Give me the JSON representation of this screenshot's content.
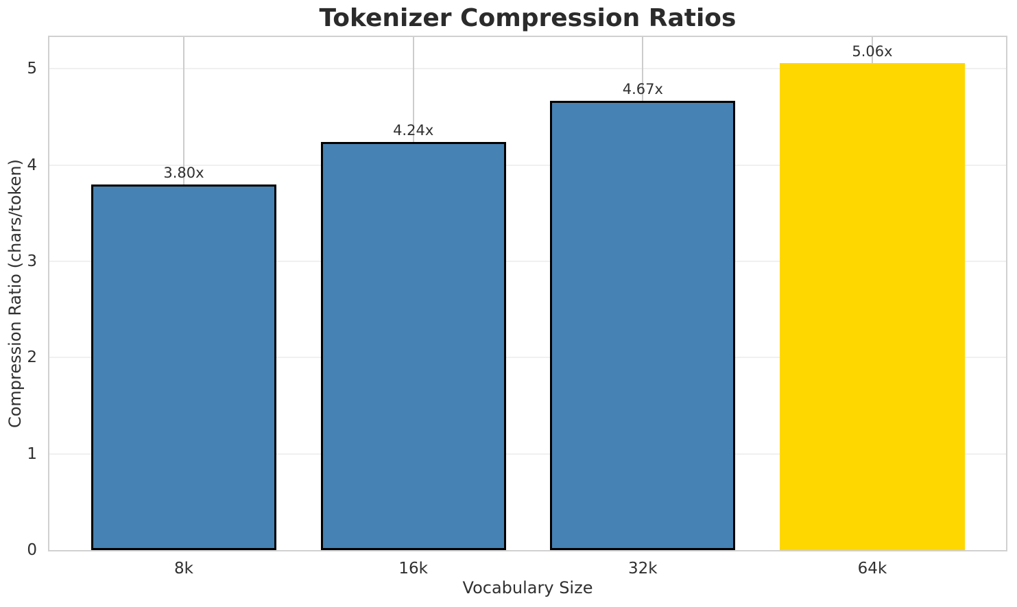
{
  "chart_data": {
    "type": "bar",
    "title": "Tokenizer Compression Ratios",
    "xlabel": "Vocabulary Size",
    "ylabel": "Compression Ratio (chars/token)",
    "categories": [
      "8k",
      "16k",
      "32k",
      "64k"
    ],
    "values": [
      3.8,
      4.24,
      4.67,
      5.06
    ],
    "bar_labels": [
      "3.80x",
      "4.24x",
      "4.67x",
      "5.06x"
    ],
    "bar_colors": [
      "#4682B4",
      "#4682B4",
      "#4682B4",
      "#FFD700"
    ],
    "bar_edge_colors": [
      "#000000",
      "#000000",
      "#000000",
      "none"
    ],
    "highlighted_category": "64k",
    "ylim": [
      0,
      5.33
    ],
    "yticks": [
      0,
      1,
      2,
      3,
      4,
      5
    ],
    "grid": true,
    "legend": false
  },
  "colors": {
    "background": "#ffffff",
    "text": "#303030",
    "title_text": "#2b2b2b",
    "spine": "#d0d0d0",
    "grid_horizontal": "#f0f0f0",
    "grid_vertical": "#cccccc",
    "bar_blue": "#4682B4",
    "bar_highlight_gold": "#FFD700",
    "bar_edge": "#000000"
  }
}
